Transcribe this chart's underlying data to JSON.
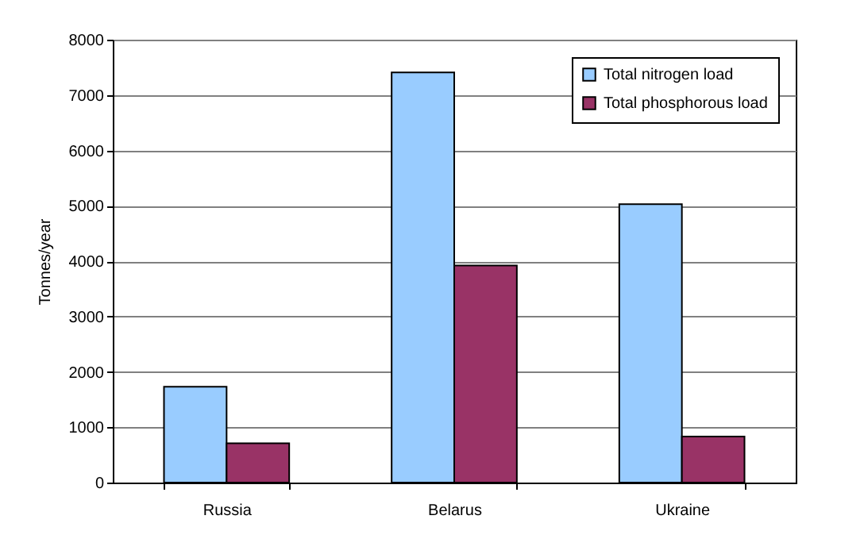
{
  "chart_data": {
    "type": "bar",
    "ylabel": "Tonnes/year",
    "categories": [
      "Russia",
      "Belarus",
      "Ukraine"
    ],
    "series": [
      {
        "name": "Total nitrogen load",
        "color": "#99ccff",
        "values": [
          1730,
          7410,
          5030
        ]
      },
      {
        "name": "Total phosphorous load",
        "color": "#993366",
        "values": [
          710,
          3920,
          830
        ]
      }
    ],
    "ylim": [
      0,
      8000
    ],
    "yticks": [
      0,
      1000,
      2000,
      3000,
      4000,
      5000,
      6000,
      7000,
      8000
    ],
    "grid": "y",
    "legend": "top right"
  }
}
